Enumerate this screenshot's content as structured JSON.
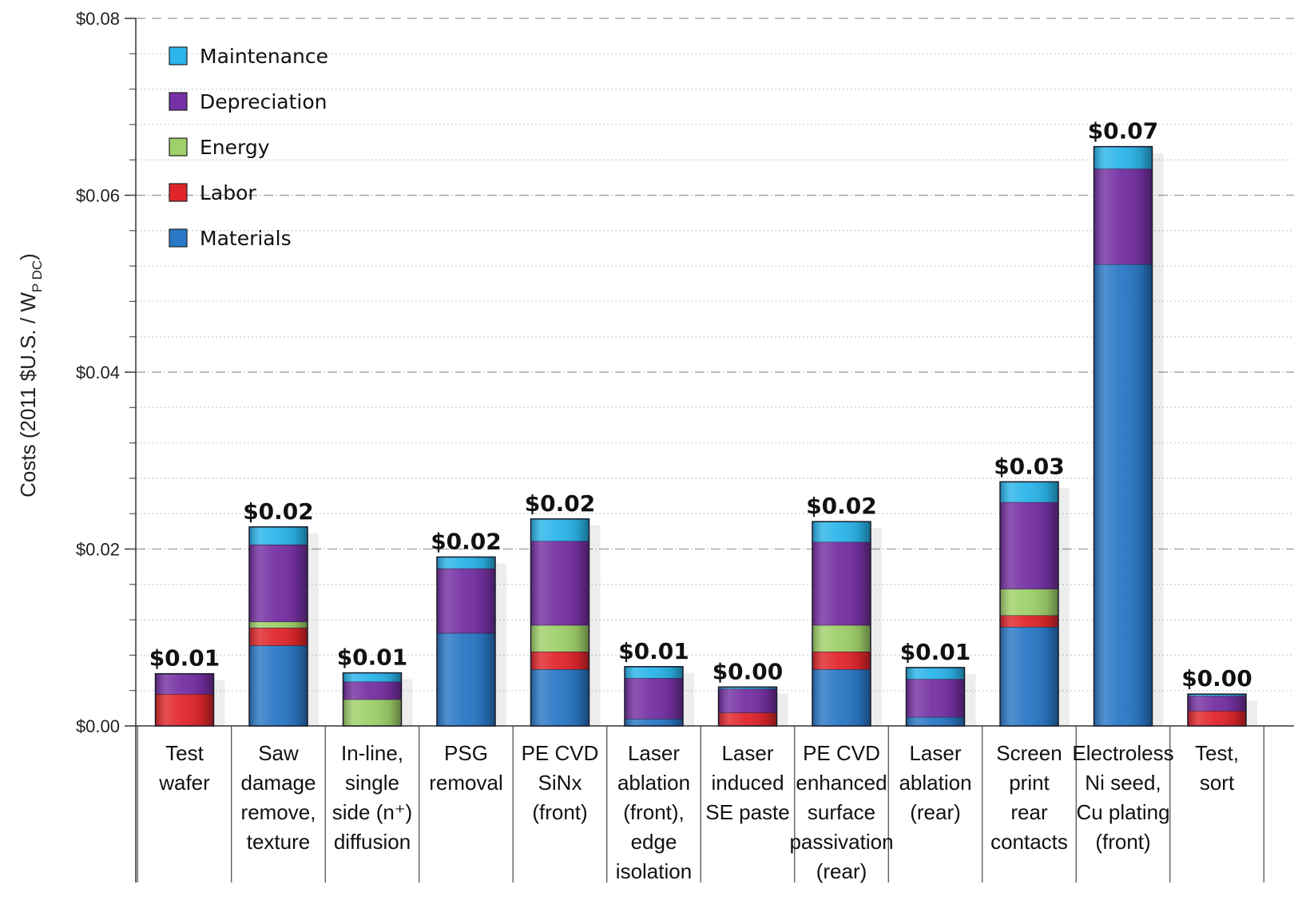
{
  "chart_data": {
    "type": "bar",
    "stacked": true,
    "ylabel": "Costs (2011 $U.S. / W",
    "ylabel_subscript": "P DC",
    "ylabel_close": ")",
    "ylim": [
      0,
      0.08
    ],
    "yticks": [
      {
        "value": 0.0,
        "label": "$0.00"
      },
      {
        "value": 0.02,
        "label": "$0.02"
      },
      {
        "value": 0.04,
        "label": "$0.04"
      },
      {
        "value": 0.06,
        "label": "$0.06"
      },
      {
        "value": 0.08,
        "label": "$0.08"
      }
    ],
    "grid": true,
    "legend_position": "top-left",
    "categories": [
      [
        "Test",
        "wafer"
      ],
      [
        "Saw",
        "damage",
        "remove,",
        "texture"
      ],
      [
        "In-line,",
        "single",
        "side (n⁺)",
        "diffusion"
      ],
      [
        "PSG",
        "removal"
      ],
      [
        "PE CVD",
        "SiNx",
        "(front)"
      ],
      [
        "Laser",
        "ablation",
        "(front),",
        "edge",
        "isolation"
      ],
      [
        "Laser",
        "induced",
        "SE paste"
      ],
      [
        "PE CVD",
        "enhanced",
        "surface",
        "passivation",
        "(rear)"
      ],
      [
        "Laser",
        "ablation",
        "(rear)"
      ],
      [
        "Screen",
        "print",
        "rear",
        "contacts"
      ],
      [
        "Electroless",
        "Ni seed,",
        "Cu plating",
        "(front)"
      ],
      [
        "Test,",
        "sort"
      ]
    ],
    "series": [
      {
        "name": "Materials",
        "color": "#2a78c6",
        "values": [
          0.0,
          0.0091,
          0.0,
          0.0105,
          0.0064,
          0.0008,
          0.0,
          0.0064,
          0.001,
          0.0112,
          0.0522,
          0.0
        ]
      },
      {
        "name": "Labor",
        "color": "#e0262b",
        "values": [
          0.0036,
          0.002,
          0.0,
          0.0,
          0.002,
          0.0,
          0.0015,
          0.002,
          0.0,
          0.0013,
          0.0,
          0.0017
        ]
      },
      {
        "name": "Energy",
        "color": "#9fd06a",
        "values": [
          0.0,
          0.0007,
          0.003,
          0.0,
          0.003,
          0.0,
          0.0,
          0.003,
          0.0,
          0.003,
          0.0,
          0.0
        ]
      },
      {
        "name": "Depreciation",
        "color": "#7530a3",
        "values": [
          0.0023,
          0.0087,
          0.002,
          0.0073,
          0.0095,
          0.0046,
          0.0027,
          0.0094,
          0.0043,
          0.0098,
          0.0108,
          0.0017
        ]
      },
      {
        "name": "Maintenance",
        "color": "#2bb5ea",
        "values": [
          0.0,
          0.002,
          0.001,
          0.0013,
          0.0025,
          0.0013,
          0.0002,
          0.0023,
          0.0013,
          0.0023,
          0.0025,
          0.0002
        ]
      }
    ],
    "legend_order": [
      "Maintenance",
      "Depreciation",
      "Energy",
      "Labor",
      "Materials"
    ],
    "totals": [
      "$0.01",
      "$0.02",
      "$0.01",
      "$0.02",
      "$0.02",
      "$0.01",
      "$0.00",
      "$0.02",
      "$0.01",
      "$0.03",
      "$0.07",
      "$0.00"
    ]
  }
}
